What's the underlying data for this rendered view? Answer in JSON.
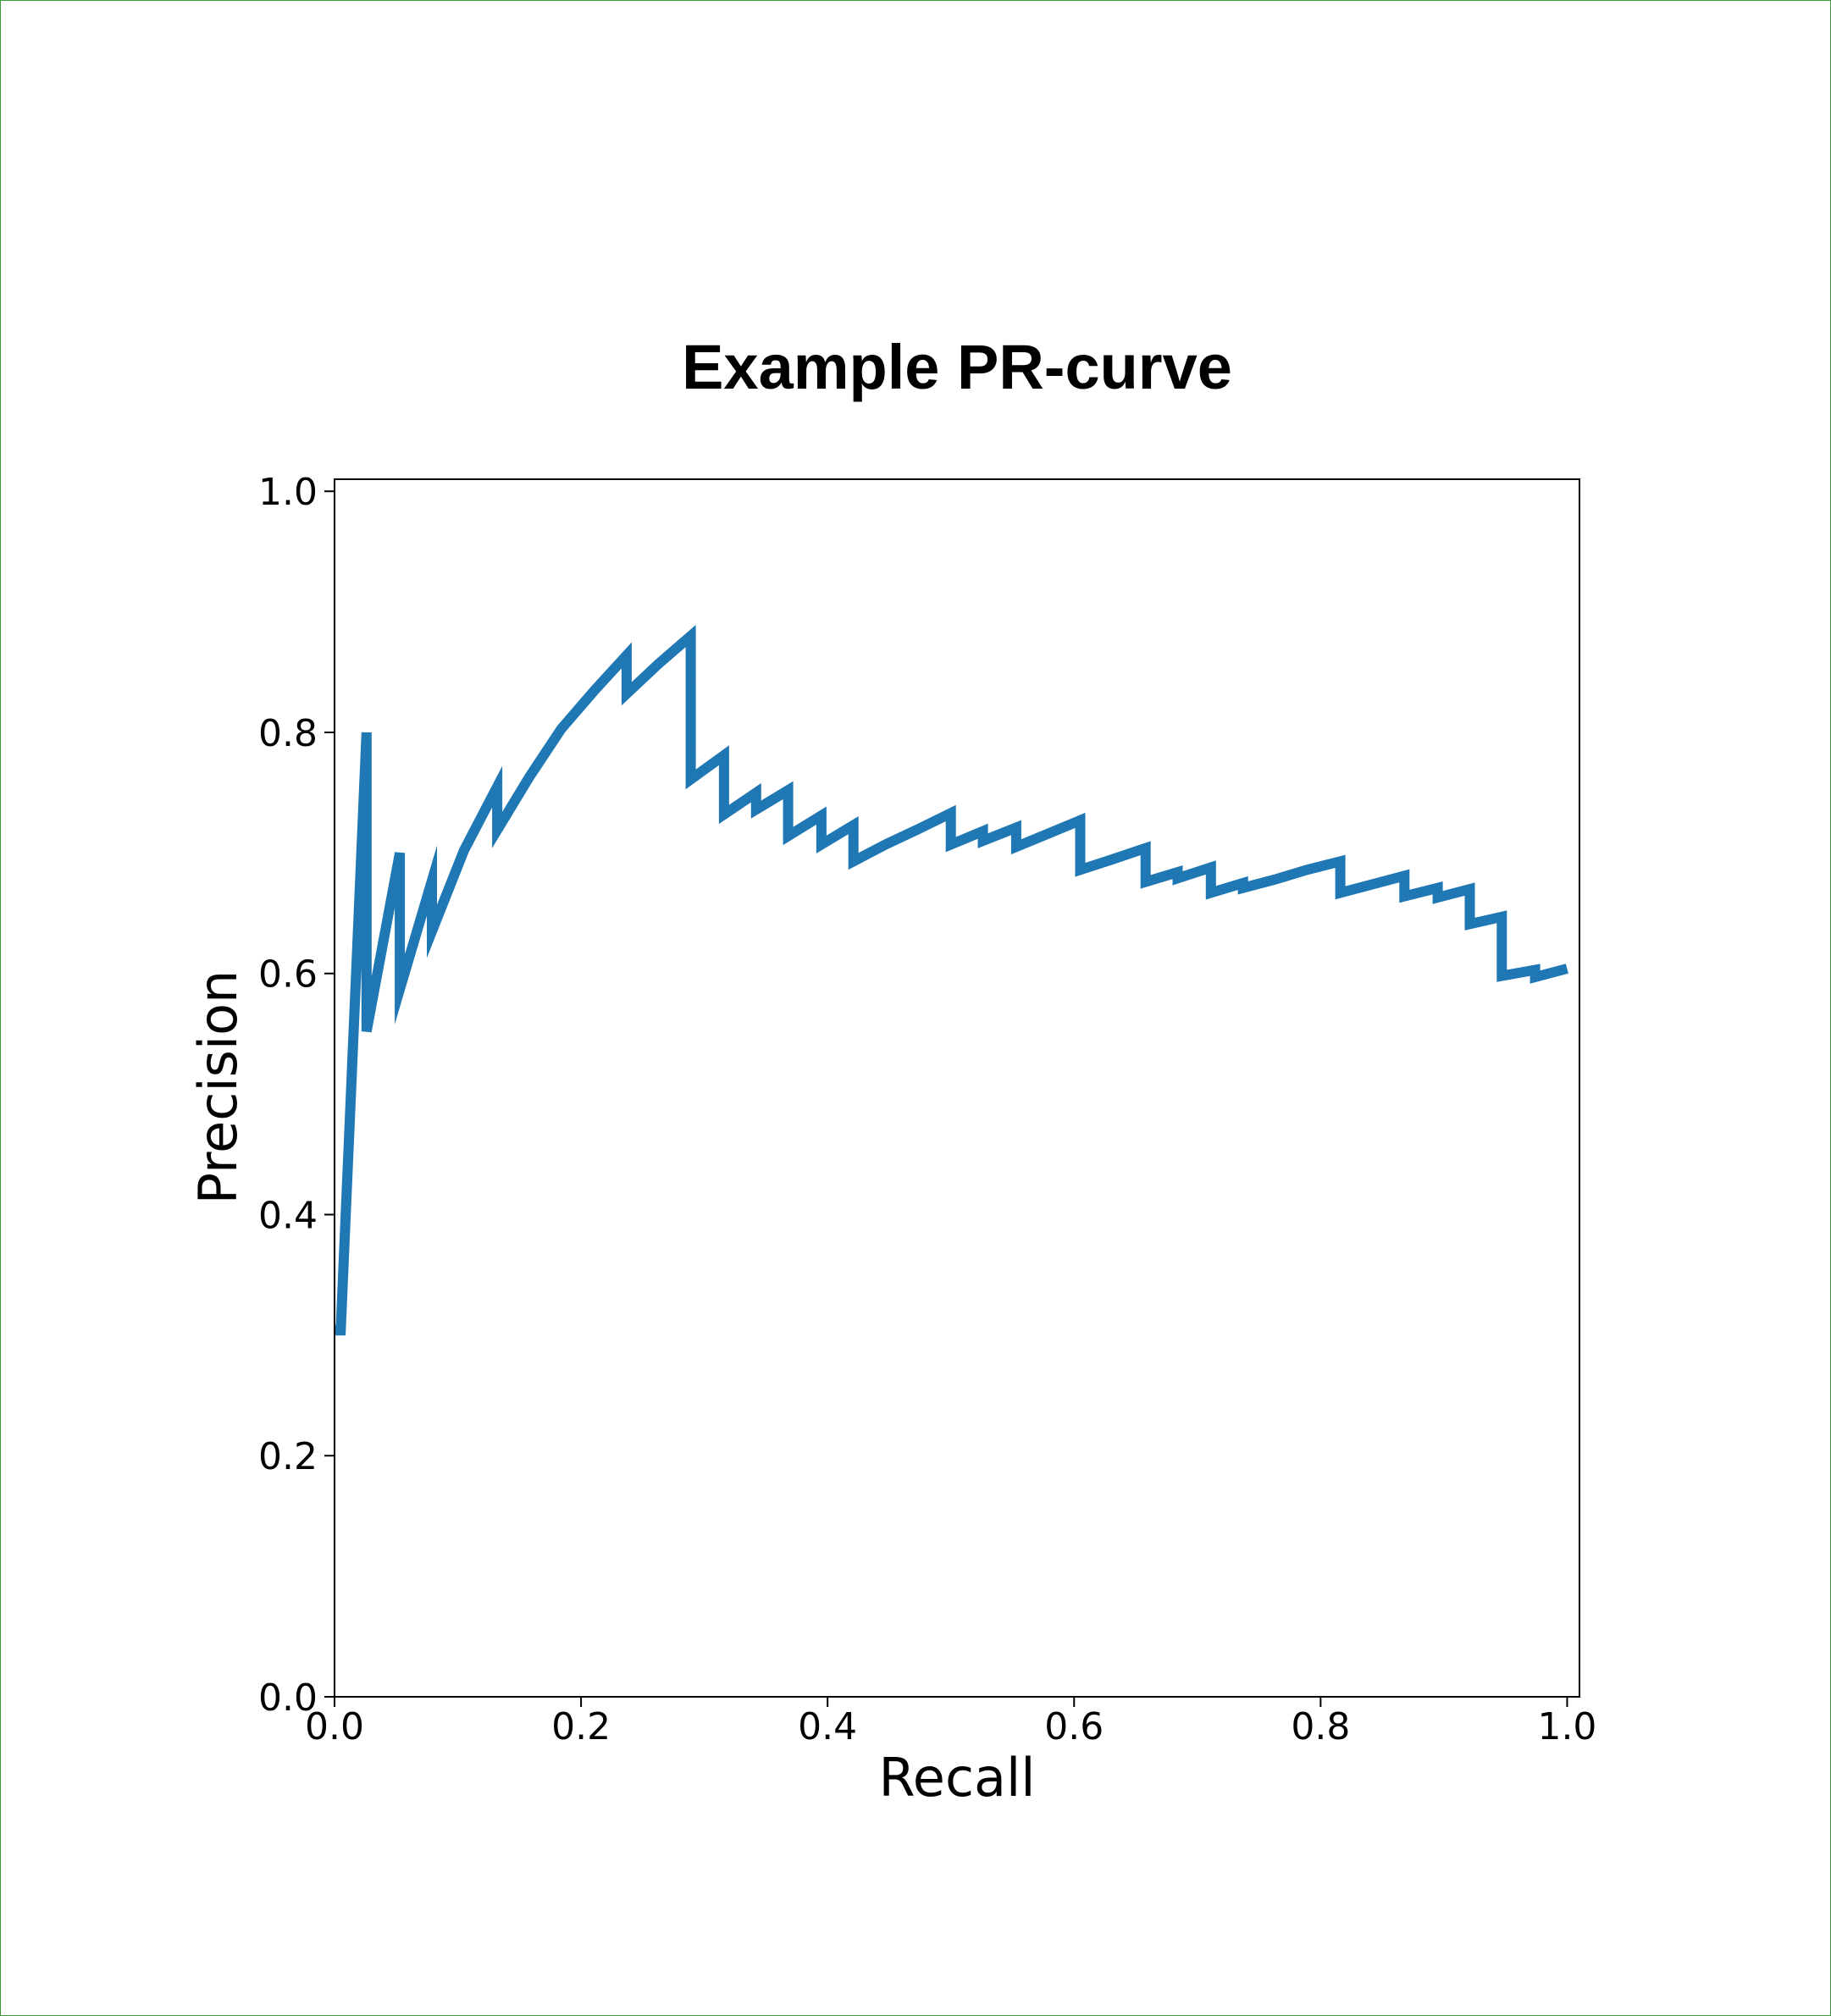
{
  "chart_data": {
    "type": "line",
    "title": "Example PR-curve",
    "xlabel": "Recall",
    "ylabel": "Precision",
    "xlim": [
      0.0,
      1.01
    ],
    "ylim": [
      0.0,
      1.01
    ],
    "xticks": [
      "0.0",
      "0.2",
      "0.4",
      "0.6",
      "0.8",
      "1.0"
    ],
    "yticks": [
      "0.0",
      "0.2",
      "0.4",
      "0.6",
      "0.8",
      "1.0"
    ],
    "grid": false,
    "line_color": "#1f77b4",
    "series": [
      {
        "x": [
          0.0,
          0.005,
          0.026,
          0.026,
          0.053,
          0.053,
          0.079,
          0.079,
          0.105,
          0.132,
          0.132,
          0.158,
          0.184,
          0.211,
          0.237,
          0.237,
          0.263,
          0.289,
          0.289,
          0.316,
          0.316,
          0.342,
          0.342,
          0.368,
          0.368,
          0.395,
          0.395,
          0.421,
          0.421,
          0.447,
          0.474,
          0.5,
          0.5,
          0.526,
          0.526,
          0.553,
          0.553,
          0.579,
          0.605,
          0.605,
          0.632,
          0.658,
          0.658,
          0.684,
          0.684,
          0.711,
          0.711,
          0.737,
          0.737,
          0.763,
          0.789,
          0.816,
          0.816,
          0.842,
          0.868,
          0.868,
          0.895,
          0.895,
          0.921,
          0.921,
          0.947,
          0.947,
          0.974,
          0.974,
          1.0
        ],
        "y": [
          0.304,
          0.304,
          0.8,
          0.552,
          0.7,
          0.587,
          0.677,
          0.635,
          0.702,
          0.755,
          0.719,
          0.763,
          0.803,
          0.835,
          0.864,
          0.832,
          0.857,
          0.88,
          0.761,
          0.781,
          0.732,
          0.75,
          0.736,
          0.752,
          0.714,
          0.731,
          0.707,
          0.723,
          0.693,
          0.707,
          0.72,
          0.733,
          0.707,
          0.718,
          0.71,
          0.721,
          0.705,
          0.716,
          0.727,
          0.686,
          0.695,
          0.704,
          0.676,
          0.684,
          0.679,
          0.688,
          0.667,
          0.675,
          0.671,
          0.678,
          0.686,
          0.693,
          0.667,
          0.674,
          0.681,
          0.664,
          0.671,
          0.663,
          0.67,
          0.641,
          0.647,
          0.598,
          0.603,
          0.597,
          0.604
        ]
      }
    ]
  }
}
